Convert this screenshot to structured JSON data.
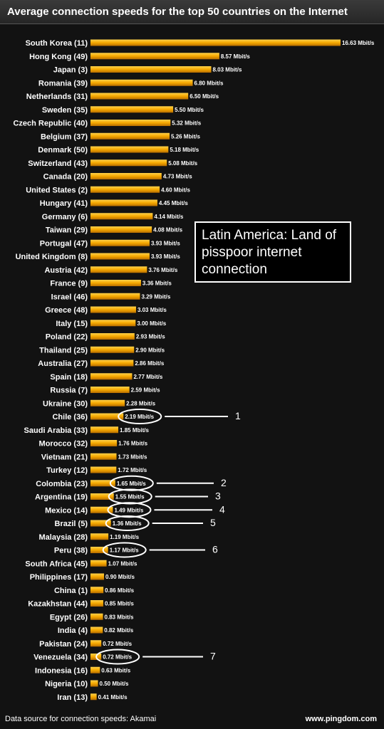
{
  "title": "Average connection speeds for the top 50 countries on the Internet",
  "annotation": "Latin America: Land of pisspoor internet connection",
  "footer": {
    "source": "Data source for connection speeds: Akamai",
    "site": "www.pingdom.com"
  },
  "colors": {
    "bar": "#f5a800",
    "bar_highlight": "#ffd24a",
    "background": "#121212",
    "text": "#ffffff"
  },
  "chart_data": {
    "type": "bar",
    "orientation": "horizontal",
    "title": "Average connection speeds for the top 50 countries on the Internet",
    "unit": "Mbit/s",
    "xlim": [
      0,
      16.63
    ],
    "categories": [
      "South Korea (11)",
      "Hong Kong (49)",
      "Japan (3)",
      "Romania (39)",
      "Netherlands (31)",
      "Sweden (35)",
      "Czech Republic (40)",
      "Belgium (37)",
      "Denmark (50)",
      "Switzerland (43)",
      "Canada (20)",
      "United States (2)",
      "Hungary (41)",
      "Germany (6)",
      "Taiwan (29)",
      "Portugal (47)",
      "United Kingdom (8)",
      "Austria (42)",
      "France (9)",
      "Israel (46)",
      "Greece (48)",
      "Italy (15)",
      "Poland (22)",
      "Thailand (25)",
      "Australia (27)",
      "Spain (18)",
      "Russia (7)",
      "Ukraine (30)",
      "Chile (36)",
      "Saudi Arabia (33)",
      "Morocco (32)",
      "Vietnam (21)",
      "Turkey (12)",
      "Colombia (23)",
      "Argentina (19)",
      "Mexico (14)",
      "Brazil (5)",
      "Malaysia (28)",
      "Peru (38)",
      "South Africa (45)",
      "Philippines (17)",
      "China (1)",
      "Kazakhstan (44)",
      "Egypt (26)",
      "India (4)",
      "Pakistan (24)",
      "Venezuela (34)",
      "Indonesia (16)",
      "Nigeria (10)",
      "Iran (13)"
    ],
    "values": [
      16.63,
      8.57,
      8.03,
      6.8,
      6.5,
      5.5,
      5.32,
      5.26,
      5.18,
      5.08,
      4.73,
      4.6,
      4.45,
      4.14,
      4.08,
      3.93,
      3.93,
      3.76,
      3.36,
      3.29,
      3.03,
      3.0,
      2.93,
      2.9,
      2.86,
      2.77,
      2.59,
      2.28,
      2.19,
      1.85,
      1.76,
      1.73,
      1.72,
      1.65,
      1.55,
      1.49,
      1.36,
      1.19,
      1.17,
      1.07,
      0.9,
      0.86,
      0.85,
      0.83,
      0.82,
      0.72,
      0.72,
      0.63,
      0.5,
      0.41
    ],
    "value_labels": [
      "16.63 Mbit/s",
      "8.57 Mbit/s",
      "8.03 Mbit/s",
      "6.80 Mbit/s",
      "6.50 Mbit/s",
      "5.50 Mbit/s",
      "5.32 Mbit/s",
      "5.26 Mbit/s",
      "5.18 Mbit/s",
      "5.08 Mbit/s",
      "4.73 Mbit/s",
      "4.60 Mbit/s",
      "4.45 Mbit/s",
      "4.14 Mbit/s",
      "4.08 Mbit/s",
      "3.93 Mbit/s",
      "3.93 Mbit/s",
      "3.76 Mbit/s",
      "3.36 Mbit/s",
      "3.29 Mbit/s",
      "3.03 Mbit/s",
      "3.00 Mbit/s",
      "2.93 Mbit/s",
      "2.90 Mbit/s",
      "2.86 Mbit/s",
      "2.77 Mbit/s",
      "2.59 Mbit/s",
      "2.28 Mbit/s",
      "2.19 Mbit/s",
      "1.85 Mbit/s",
      "1.76 Mbit/s",
      "1.73 Mbit/s",
      "1.72 Mbit/s",
      "1.65 Mbit/s",
      "1.55 Mbit/s",
      "1.49 Mbit/s",
      "1.36 Mbit/s",
      "1.19 Mbit/s",
      "1.17 Mbit/s",
      "1.07 Mbit/s",
      "0.90 Mbit/s",
      "0.86 Mbit/s",
      "0.85 Mbit/s",
      "0.83 Mbit/s",
      "0.82 Mbit/s",
      "0.72 Mbit/s",
      "0.72 Mbit/s",
      "0.63 Mbit/s",
      "0.50 Mbit/s",
      "0.41 Mbit/s"
    ],
    "highlights": [
      {
        "category": "Chile (36)",
        "marker": "1"
      },
      {
        "category": "Colombia (23)",
        "marker": "2"
      },
      {
        "category": "Argentina (19)",
        "marker": "3"
      },
      {
        "category": "Mexico (14)",
        "marker": "4"
      },
      {
        "category": "Brazil (5)",
        "marker": "5"
      },
      {
        "category": "Peru (38)",
        "marker": "6"
      },
      {
        "category": "Venezuela (34)",
        "marker": "7"
      }
    ],
    "grid": false,
    "legend": "none"
  }
}
